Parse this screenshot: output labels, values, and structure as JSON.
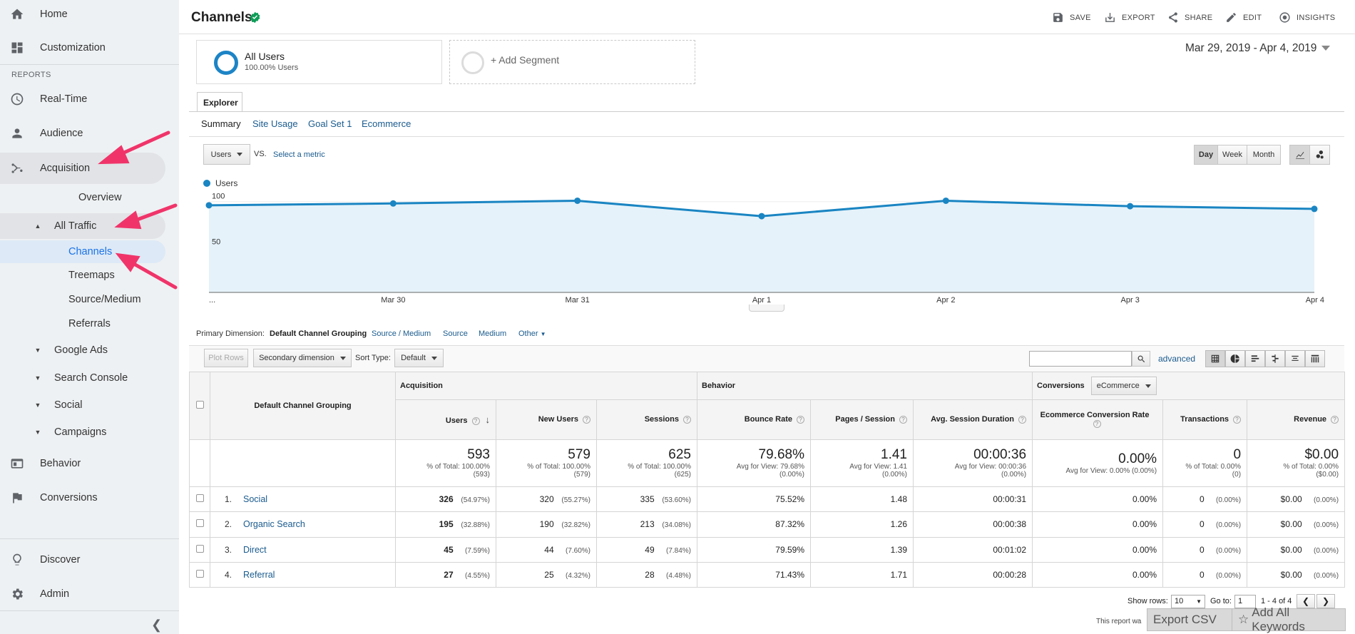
{
  "sidebar": {
    "home": "Home",
    "customization": "Customization",
    "reports_label": "REPORTS",
    "realtime": "Real-Time",
    "audience": "Audience",
    "acquisition": "Acquisition",
    "overview": "Overview",
    "all_traffic": "All Traffic",
    "channels": "Channels",
    "treemaps": "Treemaps",
    "source_medium": "Source/Medium",
    "referrals": "Referrals",
    "google_ads": "Google Ads",
    "search_console": "Search Console",
    "social": "Social",
    "campaigns": "Campaigns",
    "behavior": "Behavior",
    "conversions": "Conversions",
    "discover": "Discover",
    "admin": "Admin"
  },
  "header": {
    "title": "Channels",
    "save": "SAVE",
    "export": "EXPORT",
    "share": "SHARE",
    "edit": "EDIT",
    "insights": "INSIGHTS"
  },
  "segments": {
    "all_users": "All Users",
    "all_users_sub": "100.00% Users",
    "add": "+ Add Segment"
  },
  "date_range": "Mar 29, 2019 - Apr 4, 2019",
  "explorer": {
    "tab": "Explorer",
    "subtabs": [
      "Summary",
      "Site Usage",
      "Goal Set 1",
      "Ecommerce"
    ]
  },
  "chart_controls": {
    "metric": "Users",
    "vs": "VS.",
    "select_metric": "Select a metric",
    "granularity": [
      "Day",
      "Week",
      "Month"
    ],
    "active_granularity": "Day"
  },
  "chart_data": {
    "type": "area",
    "series": [
      {
        "name": "Users",
        "values": [
          96,
          98,
          101,
          84,
          101,
          95,
          92
        ]
      }
    ],
    "x": [
      "...",
      "Mar 30",
      "Mar 31",
      "Apr 1",
      "Apr 2",
      "Apr 3",
      "Apr 4"
    ],
    "y_ticks": [
      100,
      50
    ],
    "ylim": [
      0,
      110
    ],
    "color": "#1a85c2",
    "fill": "#e5f2fa"
  },
  "dimensions": {
    "label": "Primary Dimension:",
    "current": "Default Channel Grouping",
    "links": [
      "Source / Medium",
      "Source",
      "Medium",
      "Other"
    ]
  },
  "toolbar": {
    "plot_rows": "Plot Rows",
    "secondary": "Secondary dimension",
    "sort_type_label": "Sort Type:",
    "sort_type": "Default",
    "advanced": "advanced"
  },
  "table": {
    "dimension_header": "Default Channel Grouping",
    "groups": {
      "acquisition": "Acquisition",
      "behavior": "Behavior",
      "conversions": "Conversions",
      "conversion_select": "eCommerce"
    },
    "columns": [
      "Users",
      "New Users",
      "Sessions",
      "Bounce Rate",
      "Pages / Session",
      "Avg. Session Duration",
      "Ecommerce Conversion Rate",
      "Transactions",
      "Revenue"
    ],
    "totals": [
      {
        "big": "593",
        "l1": "% of Total: 100.00%",
        "l2": "(593)"
      },
      {
        "big": "579",
        "l1": "% of Total: 100.00%",
        "l2": "(579)"
      },
      {
        "big": "625",
        "l1": "% of Total: 100.00%",
        "l2": "(625)"
      },
      {
        "big": "79.68%",
        "l1": "Avg for View: 79.68%",
        "l2": "(0.00%)"
      },
      {
        "big": "1.41",
        "l1": "Avg for View: 1.41",
        "l2": "(0.00%)"
      },
      {
        "big": "00:00:36",
        "l1": "Avg for View: 00:00:36",
        "l2": "(0.00%)"
      },
      {
        "big": "0.00%",
        "l1": "Avg for View: 0.00% (0.00%)",
        "l2": ""
      },
      {
        "big": "0",
        "l1": "% of Total: 0.00%",
        "l2": "(0)"
      },
      {
        "big": "$0.00",
        "l1": "% of Total: 0.00%",
        "l2": "($0.00)"
      }
    ],
    "rows": [
      {
        "n": "1.",
        "name": "Social",
        "users": "326",
        "users_pct": "(54.97%)",
        "new": "320",
        "new_pct": "(55.27%)",
        "sessions": "335",
        "sessions_pct": "(53.60%)",
        "bounce": "75.52%",
        "pps": "1.48",
        "dur": "00:00:31",
        "ecr": "0.00%",
        "tx": "0",
        "tx_pct": "(0.00%)",
        "rev": "$0.00",
        "rev_pct": "(0.00%)"
      },
      {
        "n": "2.",
        "name": "Organic Search",
        "users": "195",
        "users_pct": "(32.88%)",
        "new": "190",
        "new_pct": "(32.82%)",
        "sessions": "213",
        "sessions_pct": "(34.08%)",
        "bounce": "87.32%",
        "pps": "1.26",
        "dur": "00:00:38",
        "ecr": "0.00%",
        "tx": "0",
        "tx_pct": "(0.00%)",
        "rev": "$0.00",
        "rev_pct": "(0.00%)"
      },
      {
        "n": "3.",
        "name": "Direct",
        "users": "45",
        "users_pct": "(7.59%)",
        "new": "44",
        "new_pct": "(7.60%)",
        "sessions": "49",
        "sessions_pct": "(7.84%)",
        "bounce": "79.59%",
        "pps": "1.39",
        "dur": "00:01:02",
        "ecr": "0.00%",
        "tx": "0",
        "tx_pct": "(0.00%)",
        "rev": "$0.00",
        "rev_pct": "(0.00%)"
      },
      {
        "n": "4.",
        "name": "Referral",
        "users": "27",
        "users_pct": "(4.55%)",
        "new": "25",
        "new_pct": "(4.32%)",
        "sessions": "28",
        "sessions_pct": "(4.48%)",
        "bounce": "71.43%",
        "pps": "1.71",
        "dur": "00:00:28",
        "ecr": "0.00%",
        "tx": "0",
        "tx_pct": "(0.00%)",
        "rev": "$0.00",
        "rev_pct": "(0.00%)"
      }
    ]
  },
  "footer": {
    "show_rows_label": "Show rows:",
    "show_rows": "10",
    "goto_label": "Go to:",
    "goto": "1",
    "range": "1 - 4 of 4",
    "note": "This report wa",
    "export_csv": "Export CSV",
    "add_keywords": "Add All Keywords"
  },
  "colors": {
    "accent": "#1a85c2",
    "link": "#1a5b8e",
    "arrow": "#f0346a",
    "sidebar_bg": "#eef1f3"
  }
}
